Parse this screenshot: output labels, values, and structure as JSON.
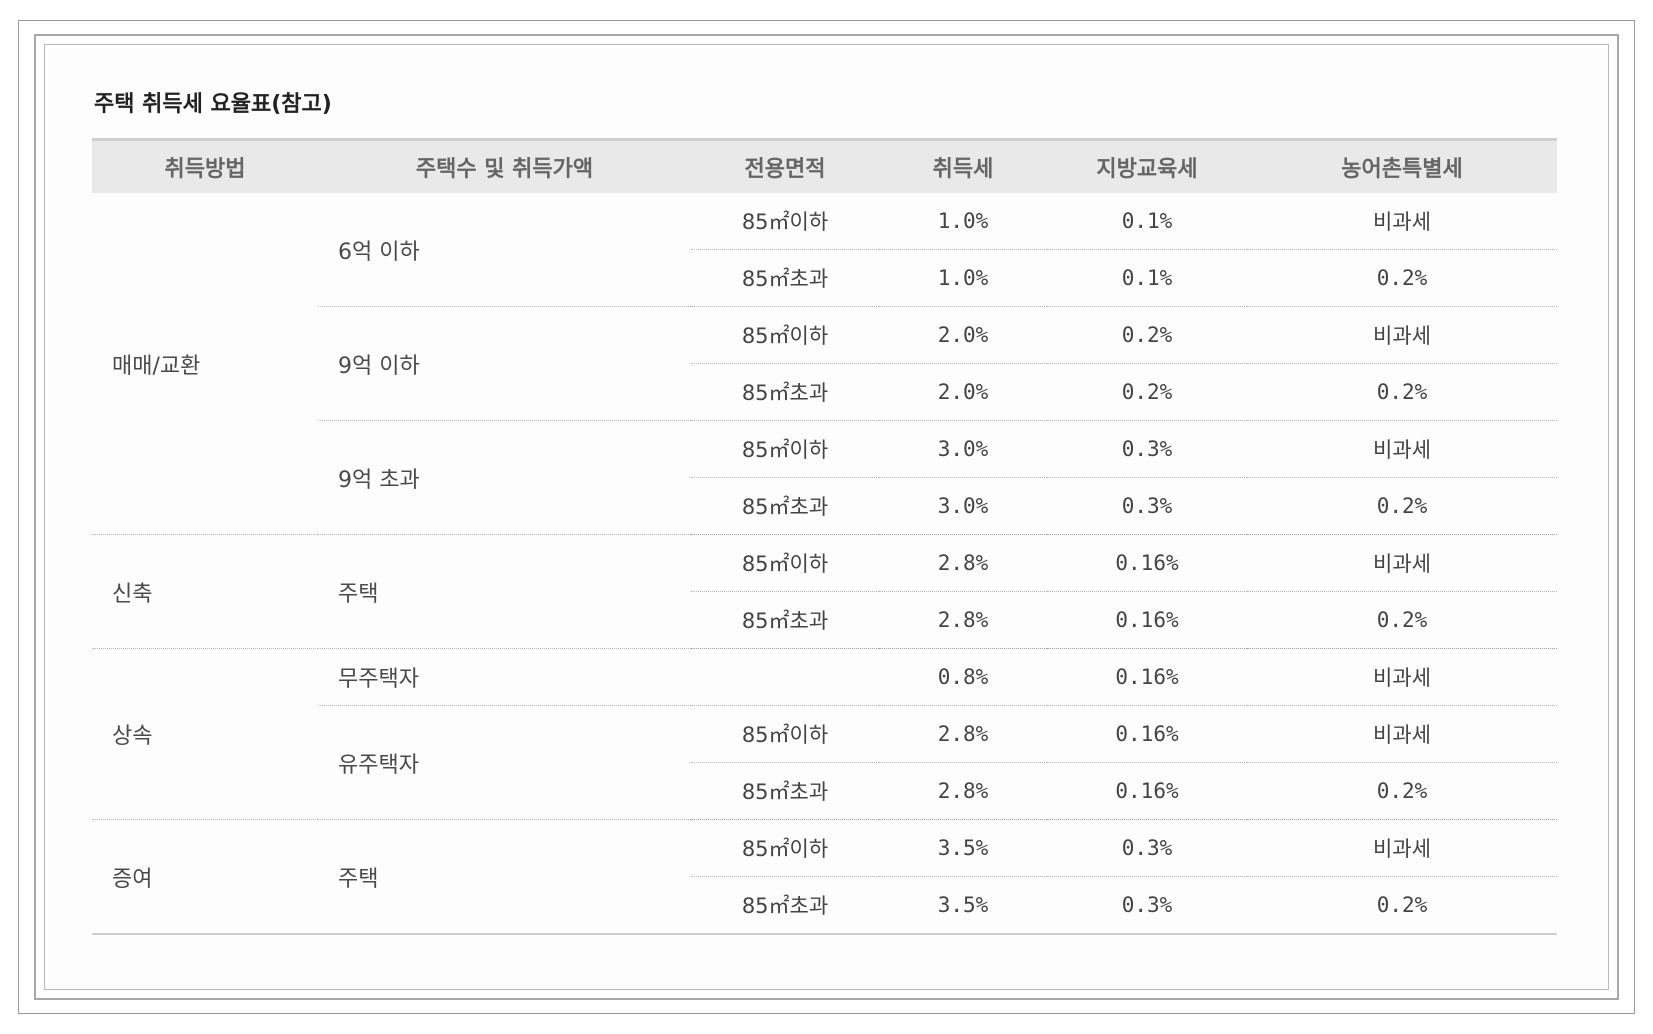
{
  "title": "주택 취득세 요율표(참고)",
  "headers": [
    "취득방법",
    "주택수 및 취득가액",
    "전용면적",
    "취득세",
    "지방교육세",
    "농어촌특별세"
  ],
  "rows": [
    {
      "method": "매매/교환",
      "price": "6억 이하",
      "area": "85㎡이하",
      "acq": "1.0%",
      "edu": "0.1%",
      "rural": "비과세"
    },
    {
      "area": "85㎡초과",
      "acq": "1.0%",
      "edu": "0.1%",
      "rural": "0.2%"
    },
    {
      "price": "9억 이하",
      "area": "85㎡이하",
      "acq": "2.0%",
      "edu": "0.2%",
      "rural": "비과세"
    },
    {
      "area": "85㎡초과",
      "acq": "2.0%",
      "edu": "0.2%",
      "rural": "0.2%"
    },
    {
      "price": "9억 초과",
      "area": "85㎡이하",
      "acq": "3.0%",
      "edu": "0.3%",
      "rural": "비과세"
    },
    {
      "area": "85㎡초과",
      "acq": "3.0%",
      "edu": "0.3%",
      "rural": "0.2%"
    },
    {
      "method": "신축",
      "price": "주택",
      "area": "85㎡이하",
      "acq": "2.8%",
      "edu": "0.16%",
      "rural": "비과세"
    },
    {
      "area": "85㎡초과",
      "acq": "2.8%",
      "edu": "0.16%",
      "rural": "0.2%"
    },
    {
      "method": "상속",
      "price": "무주택자",
      "area": "",
      "acq": "0.8%",
      "edu": "0.16%",
      "rural": "비과세"
    },
    {
      "price": "유주택자",
      "area": "85㎡이하",
      "acq": "2.8%",
      "edu": "0.16%",
      "rural": "비과세"
    },
    {
      "area": "85㎡초과",
      "acq": "2.8%",
      "edu": "0.16%",
      "rural": "0.2%"
    },
    {
      "method": "증여",
      "price": "주택",
      "area": "85㎡이하",
      "acq": "3.5%",
      "edu": "0.3%",
      "rural": "비과세"
    },
    {
      "area": "85㎡초과",
      "acq": "3.5%",
      "edu": "0.3%",
      "rural": "0.2%"
    }
  ]
}
